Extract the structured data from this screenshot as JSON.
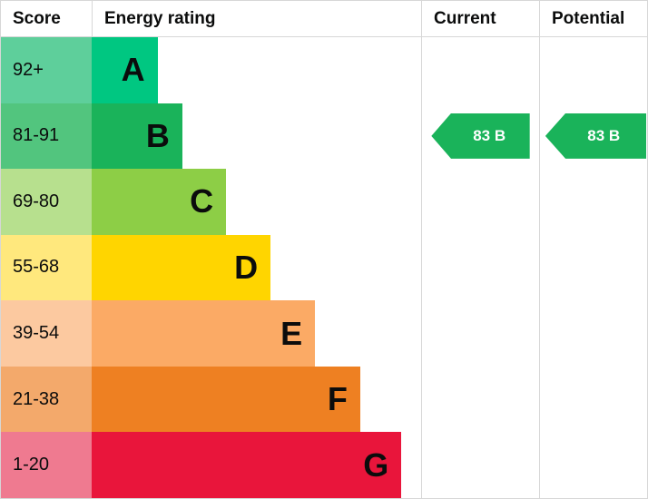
{
  "header": {
    "score": "Score",
    "rating": "Energy rating",
    "current": "Current",
    "potential": "Potential"
  },
  "bands": [
    {
      "score": "92+",
      "letter": "A",
      "bar_color": "#00c781",
      "score_color": "#5ecf9b",
      "bar_width_pct": 20.0
    },
    {
      "score": "81-91",
      "letter": "B",
      "bar_color": "#1ab35a",
      "score_color": "#52c57e",
      "bar_width_pct": 27.5
    },
    {
      "score": "69-80",
      "letter": "C",
      "bar_color": "#8dce46",
      "score_color": "#b7e08e",
      "bar_width_pct": 40.8
    },
    {
      "score": "55-68",
      "letter": "D",
      "bar_color": "#ffd500",
      "score_color": "#ffe87d",
      "bar_width_pct": 54.3
    },
    {
      "score": "39-54",
      "letter": "E",
      "bar_color": "#fbaa65",
      "score_color": "#fcc9a0",
      "bar_width_pct": 67.8
    },
    {
      "score": "21-38",
      "letter": "F",
      "bar_color": "#ee8022",
      "score_color": "#f3a96b",
      "bar_width_pct": 81.5
    },
    {
      "score": "1-20",
      "letter": "G",
      "bar_color": "#e9153b",
      "score_color": "#ef7a90",
      "bar_width_pct": 94.0
    }
  ],
  "current": {
    "label": "83 B",
    "color": "#1ab35a",
    "band_index": 1
  },
  "potential": {
    "label": "83 B",
    "color": "#1ab35a",
    "band_index": 1
  },
  "colors": {
    "border": "#d7d7d7",
    "arrow_text": "#ffffff",
    "text": "#0b0c0c"
  },
  "chart_data": {
    "type": "bar",
    "title": "Energy rating",
    "categories": [
      "A",
      "B",
      "C",
      "D",
      "E",
      "F",
      "G"
    ],
    "score_ranges": [
      "92+",
      "81-91",
      "69-80",
      "55-68",
      "39-54",
      "21-38",
      "1-20"
    ],
    "values": [
      20.0,
      27.5,
      40.8,
      54.3,
      67.8,
      81.5,
      94.0
    ],
    "band_colors": [
      "#00c781",
      "#1ab35a",
      "#8dce46",
      "#ffd500",
      "#fbaa65",
      "#ee8022",
      "#e9153b"
    ],
    "current": {
      "score": 83,
      "band": "B"
    },
    "potential": {
      "score": 83,
      "band": "B"
    },
    "legend_position": "none",
    "grid": false
  }
}
